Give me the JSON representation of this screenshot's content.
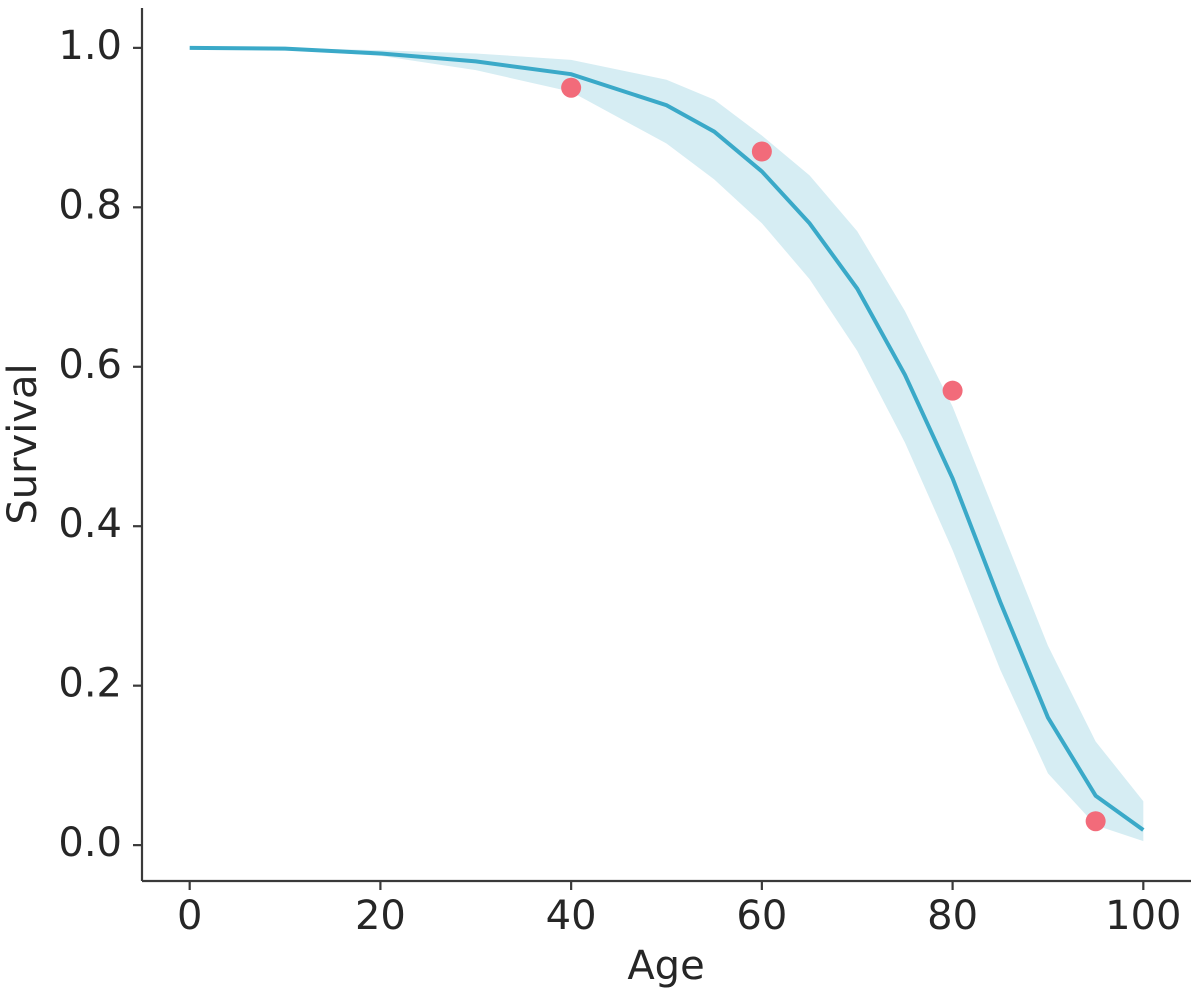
{
  "chart_data": {
    "type": "line",
    "xlabel": "Age",
    "ylabel": "Survival",
    "xlim": [
      -5,
      105
    ],
    "ylim": [
      -0.045,
      1.05
    ],
    "xticks": [
      0,
      20,
      40,
      60,
      80,
      100
    ],
    "yticks": [
      {
        "value": 0,
        "label": "0.0"
      },
      0.2,
      0.4,
      0.6,
      0.8,
      {
        "value": 1,
        "label": "1.0"
      }
    ],
    "x": [
      0,
      10,
      20,
      30,
      40,
      50,
      55,
      60,
      65,
      70,
      75,
      80,
      85,
      90,
      95,
      100
    ],
    "series": [
      {
        "color": "#3aa9c8",
        "values": [
          1.0,
          0.999,
          0.993,
          0.983,
          0.967,
          0.928,
          0.895,
          0.845,
          0.78,
          0.698,
          0.59,
          0.46,
          0.305,
          0.16,
          0.062,
          0.019
        ]
      }
    ],
    "band": {
      "color": "#d6edf3",
      "upper": [
        1.0,
        1.0,
        0.997,
        0.993,
        0.985,
        0.96,
        0.935,
        0.89,
        0.84,
        0.77,
        0.67,
        0.55,
        0.4,
        0.25,
        0.13,
        0.055
      ],
      "lower": [
        1.0,
        0.998,
        0.99,
        0.972,
        0.945,
        0.88,
        0.835,
        0.78,
        0.71,
        0.62,
        0.505,
        0.37,
        0.22,
        0.09,
        0.025,
        0.005
      ]
    },
    "points": {
      "color": "#f26b7a",
      "x": [
        40,
        60,
        80,
        95
      ],
      "y": [
        0.95,
        0.87,
        0.57,
        0.03
      ]
    }
  }
}
